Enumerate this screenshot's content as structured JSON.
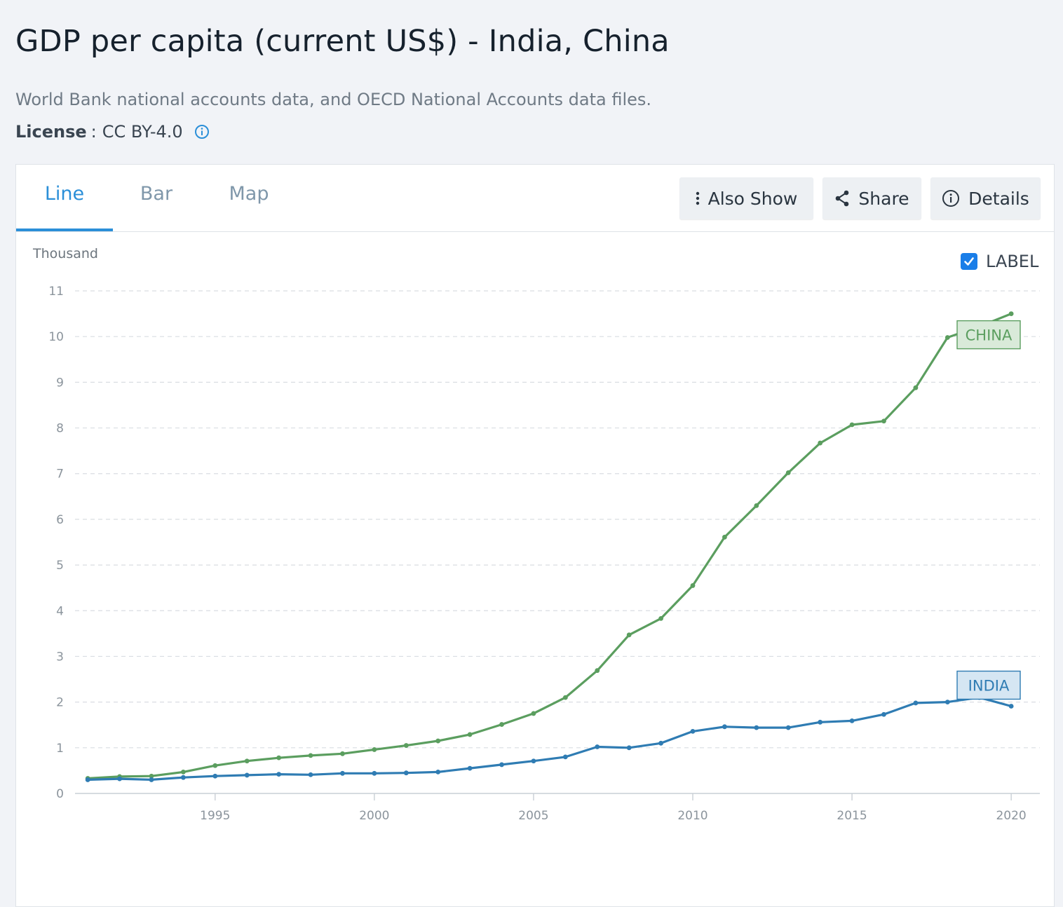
{
  "header": {
    "title": "GDP per capita (current US$) - India, China",
    "source": "World Bank national accounts data, and OECD National Accounts data files.",
    "license_label": "License",
    "license_sep": ":",
    "license_value": "CC BY-4.0"
  },
  "tabs": [
    {
      "label": "Line",
      "active": true
    },
    {
      "label": "Bar",
      "active": false
    },
    {
      "label": "Map",
      "active": false
    }
  ],
  "toolbar": {
    "also_show": "Also Show",
    "share": "Share",
    "details": "Details"
  },
  "label_toggle": {
    "text": "LABEL",
    "checked": true
  },
  "colors": {
    "accent": "#2b8fd8",
    "china": "#5b9e5f",
    "india": "#2f7cb3",
    "checkbox": "#1a7ee8"
  },
  "chart_data": {
    "type": "line",
    "unit_label": "Thousand",
    "y_ticks": [
      "0",
      "1",
      "2",
      "3",
      "4",
      "5",
      "6",
      "7",
      "8",
      "9",
      "10",
      "11"
    ],
    "ylim": [
      0,
      11
    ],
    "x_ticks": [
      "1995",
      "2000",
      "2005",
      "2010",
      "2015",
      "2020"
    ],
    "x_tick_values": [
      1995,
      2000,
      2005,
      2010,
      2015,
      2020
    ],
    "xlim": [
      1990.6,
      2020.9
    ],
    "grid": true,
    "x": [
      1991,
      1992,
      1993,
      1994,
      1995,
      1996,
      1997,
      1998,
      1999,
      2000,
      2001,
      2002,
      2003,
      2004,
      2005,
      2006,
      2007,
      2008,
      2009,
      2010,
      2011,
      2012,
      2013,
      2014,
      2015,
      2016,
      2017,
      2018,
      2019,
      2020
    ],
    "series": [
      {
        "name": "CHINA",
        "values": [
          0.33,
          0.37,
          0.38,
          0.47,
          0.61,
          0.71,
          0.78,
          0.83,
          0.87,
          0.96,
          1.05,
          1.15,
          1.29,
          1.51,
          1.75,
          2.1,
          2.69,
          3.47,
          3.83,
          4.55,
          5.61,
          6.3,
          7.02,
          7.67,
          8.07,
          8.15,
          8.88,
          9.98,
          10.22,
          10.5
        ]
      },
      {
        "name": "INDIA",
        "values": [
          0.3,
          0.32,
          0.3,
          0.35,
          0.38,
          0.4,
          0.42,
          0.41,
          0.44,
          0.44,
          0.45,
          0.47,
          0.55,
          0.63,
          0.71,
          0.8,
          1.02,
          1.0,
          1.1,
          1.36,
          1.46,
          1.44,
          1.44,
          1.56,
          1.59,
          1.73,
          1.98,
          2.0,
          2.1,
          1.91
        ]
      }
    ]
  }
}
